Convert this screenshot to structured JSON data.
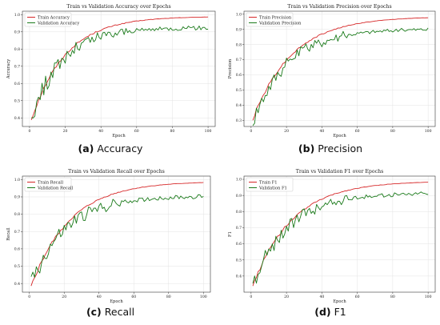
{
  "chart_data": [
    {
      "type": "line",
      "title": "Train vs Validation Accuracy over Epochs",
      "xlabel": "Epoch",
      "ylabel": "Accuracy",
      "xlim": [
        -4,
        104
      ],
      "ylim": [
        0.35,
        1.02
      ],
      "xticks": [
        0,
        20,
        40,
        60,
        80,
        100
      ],
      "yticks": [
        0.4,
        0.5,
        0.6,
        0.7,
        0.8,
        0.9,
        1.0
      ],
      "grid": true,
      "legend": "top-left",
      "caption_letter": "(a)",
      "caption_text": "Accuracy",
      "series": [
        {
          "name": "Train Accuracy",
          "color": "#d62728",
          "kind": "train",
          "start": 0.39,
          "end": 0.99,
          "rate": 0.052
        },
        {
          "name": "Validation Accuracy",
          "color": "#1a7a1a",
          "kind": "val",
          "start": 0.4,
          "end": 0.925,
          "rate": 0.058
        }
      ]
    },
    {
      "type": "line",
      "title": "Train vs Validation Precision over Epochs",
      "xlabel": "Epoch",
      "ylabel": "Precision",
      "xlim": [
        -4,
        104
      ],
      "ylim": [
        0.26,
        1.02
      ],
      "xticks": [
        0,
        20,
        40,
        60,
        80,
        100
      ],
      "yticks": [
        0.3,
        0.4,
        0.5,
        0.6,
        0.7,
        0.8,
        0.9,
        1.0
      ],
      "grid": true,
      "legend": "top-left",
      "caption_letter": "(b)",
      "caption_text": "Precision",
      "series": [
        {
          "name": "Train Precision",
          "color": "#d62728",
          "kind": "train",
          "start": 0.31,
          "end": 0.985,
          "rate": 0.045
        },
        {
          "name": "Validation Precision",
          "color": "#1a7a1a",
          "kind": "val",
          "start": 0.3,
          "end": 0.905,
          "rate": 0.05
        }
      ]
    },
    {
      "type": "line",
      "title": "Train vs Validation Recall over Epochs",
      "xlabel": "Epoch",
      "ylabel": "Recall",
      "xlim": [
        -4,
        104
      ],
      "ylim": [
        0.35,
        1.02
      ],
      "xticks": [
        0,
        20,
        40,
        60,
        80,
        100
      ],
      "yticks": [
        0.4,
        0.5,
        0.6,
        0.7,
        0.8,
        0.9,
        1.0
      ],
      "grid": true,
      "legend": "top-left",
      "caption_letter": "(c)",
      "caption_text": "Recall",
      "series": [
        {
          "name": "Train Recall",
          "color": "#d62728",
          "kind": "train",
          "start": 0.38,
          "end": 0.99,
          "rate": 0.045
        },
        {
          "name": "Validation Recall",
          "color": "#1a7a1a",
          "kind": "val",
          "start": 0.4,
          "end": 0.905,
          "rate": 0.05
        }
      ]
    },
    {
      "type": "line",
      "title": "Train vs Validation F1 over Epochs",
      "xlabel": "Epoch",
      "ylabel": "F1",
      "xlim": [
        -4,
        104
      ],
      "ylim": [
        0.3,
        1.02
      ],
      "xticks": [
        0,
        20,
        40,
        60,
        80,
        100
      ],
      "yticks": [
        0.4,
        0.5,
        0.6,
        0.7,
        0.8,
        0.9,
        1.0
      ],
      "grid": true,
      "legend": "top-left",
      "caption_letter": "(d)",
      "caption_text": "F1",
      "series": [
        {
          "name": "Train F1",
          "color": "#d62728",
          "kind": "train",
          "start": 0.34,
          "end": 0.99,
          "rate": 0.045
        },
        {
          "name": "Validation F1",
          "color": "#1a7a1a",
          "kind": "val",
          "start": 0.35,
          "end": 0.915,
          "rate": 0.05
        }
      ]
    }
  ]
}
